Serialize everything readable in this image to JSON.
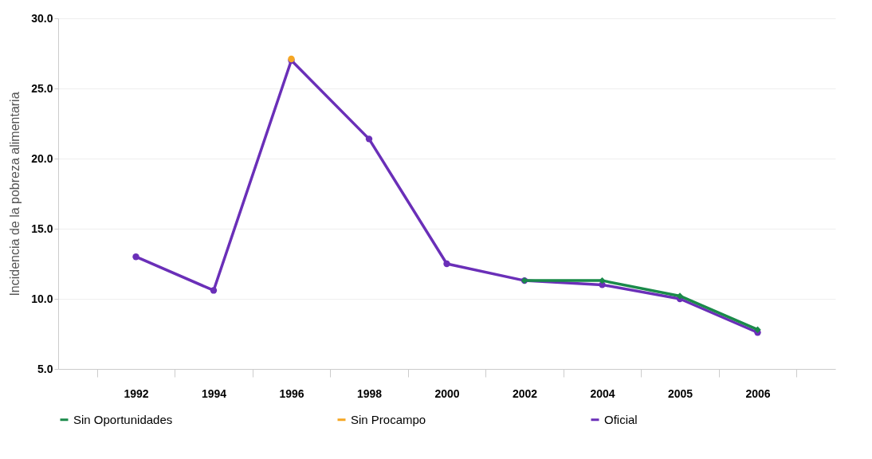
{
  "chart_data": {
    "type": "line",
    "ylabel": "Incidencia de la pobreza alimentaria",
    "categories": [
      "1992",
      "1994",
      "1996",
      "1998",
      "2000",
      "2002",
      "2004",
      "2005",
      "2006"
    ],
    "series": [
      {
        "name": "Sin Oportunidades",
        "color": "#1a8a4a",
        "marker": "diamond",
        "values": [
          null,
          null,
          null,
          null,
          null,
          11.3,
          11.3,
          10.2,
          7.8
        ]
      },
      {
        "name": "Sin Procampo",
        "color": "#f5a623",
        "type": "scatter",
        "values": [
          null,
          null,
          27.1,
          null,
          null,
          null,
          null,
          null,
          null
        ]
      },
      {
        "name": "Oficial",
        "color": "#6a2fb8",
        "values": [
          13.0,
          10.6,
          27.0,
          21.4,
          12.5,
          11.3,
          11.0,
          10.0,
          7.6
        ]
      }
    ],
    "ylim": [
      5,
      30
    ],
    "yticks": [
      {
        "value": 5,
        "label": "5.0"
      },
      {
        "value": 10,
        "label": "10.0"
      },
      {
        "value": 15,
        "label": "15.0"
      },
      {
        "value": 20,
        "label": "20.0"
      },
      {
        "value": 25,
        "label": "25.0"
      },
      {
        "value": 30,
        "label": "30.0"
      }
    ],
    "grid": "y",
    "legend": "bottom",
    "marker": "circle",
    "line_style": "solid"
  }
}
